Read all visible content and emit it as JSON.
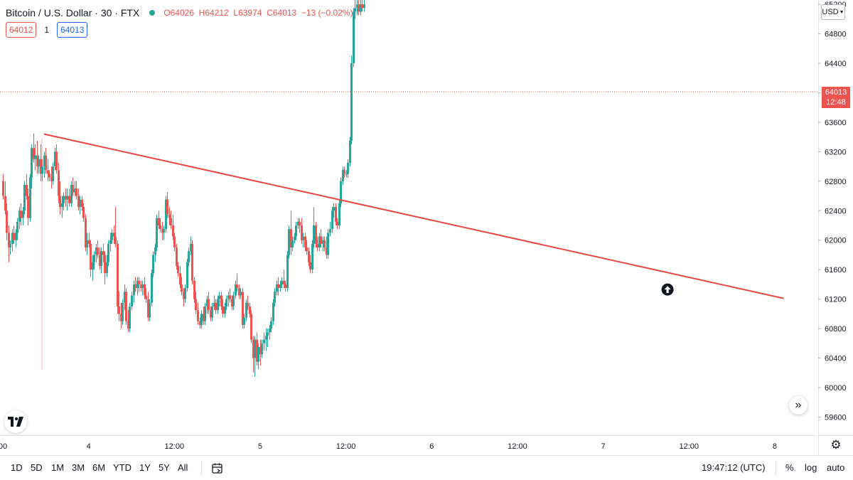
{
  "header": {
    "symbol": "Bitcoin / U.S. Dollar · 30 · FTX",
    "ohlc": {
      "open_label": "O",
      "open": "64026",
      "high_label": "H",
      "high": "64212",
      "low_label": "L",
      "low": "63974",
      "close_label": "C",
      "close": "64013",
      "change": "−13 (−0.02%)"
    },
    "sell_price": "64012",
    "spread": "1",
    "buy_price": "64013"
  },
  "price_scale": {
    "currency": "USD",
    "current_price": "64013",
    "countdown": "12:48"
  },
  "toolbar": {
    "ranges": [
      "1D",
      "5D",
      "1M",
      "3M",
      "6M",
      "YTD",
      "1Y",
      "5Y",
      "All"
    ],
    "clock": "19:47:12 (UTC)",
    "percent_label": "%",
    "log_label": "log",
    "auto_label": "auto"
  },
  "colors": {
    "up": "#26a69a",
    "down": "#ef5350",
    "trendline": "#e8483f",
    "grid": "#f0f3fa",
    "axis_text": "#131722"
  },
  "chart_data": {
    "type": "candlestick",
    "y_axis": {
      "ticks": [
        59600,
        60000,
        60400,
        60800,
        61200,
        61600,
        62000,
        62400,
        62800,
        63200,
        63600,
        64000,
        64400,
        64800,
        65200
      ],
      "ylim": [
        59400,
        65260
      ]
    },
    "x_axis": {
      "ticks": [
        {
          "label": "00",
          "bar": 0
        },
        {
          "label": "4",
          "bar": 48
        },
        {
          "label": "12:00",
          "bar": 96
        },
        {
          "label": "5",
          "bar": 144
        },
        {
          "label": "12:00",
          "bar": 192
        },
        {
          "label": "6",
          "bar": 240
        },
        {
          "label": "12:00",
          "bar": 288
        },
        {
          "label": "7",
          "bar": 336
        },
        {
          "label": "12:00",
          "bar": 384
        },
        {
          "label": "8",
          "bar": 432
        }
      ]
    },
    "current_price": 64013,
    "trendline": {
      "from": {
        "bar": 23,
        "price": 63440
      },
      "to": {
        "bar": 437,
        "price": 61210
      }
    },
    "annotation": {
      "type": "arrow-up",
      "bar": 372,
      "price": 61330
    },
    "candles_ohlc": [
      [
        62800,
        62900,
        62550,
        62600
      ],
      [
        62600,
        62800,
        62350,
        62400
      ],
      [
        62400,
        62500,
        62000,
        62100
      ],
      [
        62100,
        62200,
        61700,
        61900
      ],
      [
        61900,
        62000,
        61800,
        61950
      ],
      [
        61950,
        62150,
        61850,
        62100
      ],
      [
        62100,
        62200,
        61950,
        62000
      ],
      [
        62000,
        62150,
        61900,
        62100
      ],
      [
        62100,
        62300,
        62000,
        62250
      ],
      [
        62250,
        62450,
        62150,
        62400
      ],
      [
        62400,
        62500,
        62200,
        62300
      ],
      [
        62300,
        62450,
        62200,
        62400
      ],
      [
        62400,
        62800,
        62350,
        62750
      ],
      [
        62750,
        62900,
        62550,
        62600
      ],
      [
        62600,
        62700,
        62200,
        62300
      ],
      [
        62300,
        62900,
        62250,
        62850
      ],
      [
        62850,
        63300,
        62700,
        63250
      ],
      [
        63250,
        63450,
        63050,
        63100
      ],
      [
        63100,
        63300,
        62950,
        63150
      ],
      [
        63150,
        63350,
        62900,
        63000
      ],
      [
        63000,
        63150,
        62900,
        63100
      ],
      [
        63100,
        63300,
        62800,
        62900
      ],
      [
        62900,
        63100,
        62800,
        63000
      ],
      [
        63000,
        63200,
        62850,
        63150
      ],
      [
        63150,
        63250,
        62900,
        62950
      ],
      [
        62950,
        63100,
        62800,
        62900
      ],
      [
        62900,
        62950,
        62800,
        62850
      ],
      [
        62850,
        63000,
        62700,
        62800
      ],
      [
        62800,
        63050,
        62750,
        63000
      ],
      [
        63000,
        63250,
        62950,
        63200
      ],
      [
        63200,
        63300,
        62900,
        62950
      ],
      [
        62950,
        63050,
        62500,
        62600
      ],
      [
        62600,
        62800,
        62350,
        62450
      ],
      [
        62450,
        62600,
        62300,
        62500
      ],
      [
        62500,
        62650,
        62400,
        62600
      ],
      [
        62600,
        62700,
        62450,
        62550
      ],
      [
        62550,
        62700,
        62400,
        62600
      ],
      [
        62600,
        62700,
        62450,
        62500
      ],
      [
        62500,
        62800,
        62450,
        62750
      ],
      [
        62750,
        62850,
        62600,
        62650
      ],
      [
        62650,
        62800,
        62600,
        62700
      ],
      [
        62700,
        62800,
        62550,
        62600
      ],
      [
        62600,
        62700,
        62400,
        62450
      ],
      [
        62450,
        62600,
        62350,
        62550
      ],
      [
        62550,
        62600,
        62400,
        62450
      ],
      [
        62450,
        62500,
        62250,
        62300
      ],
      [
        62300,
        62350,
        61850,
        61900
      ],
      [
        61900,
        62100,
        61800,
        62000
      ],
      [
        62000,
        62100,
        61900,
        61950
      ],
      [
        61950,
        62000,
        61500,
        61600
      ],
      [
        61600,
        61800,
        61450,
        61700
      ],
      [
        61700,
        61850,
        61600,
        61800
      ],
      [
        61800,
        61950,
        61700,
        61900
      ],
      [
        61900,
        62000,
        61750,
        61800
      ],
      [
        61800,
        61900,
        61600,
        61650
      ],
      [
        61650,
        61900,
        61550,
        61850
      ],
      [
        61850,
        61950,
        61700,
        61800
      ],
      [
        61800,
        61850,
        61400,
        61550
      ],
      [
        61550,
        61800,
        61500,
        61700
      ],
      [
        61700,
        62000,
        61650,
        61950
      ],
      [
        61950,
        62100,
        61850,
        62000
      ],
      [
        62000,
        62150,
        61950,
        62100
      ],
      [
        62100,
        62200,
        61950,
        62050
      ],
      [
        62050,
        62450,
        61900,
        61950
      ],
      [
        61950,
        62000,
        61000,
        61100
      ],
      [
        61100,
        61300,
        60900,
        61000
      ],
      [
        61000,
        61150,
        60800,
        60900
      ],
      [
        60900,
        61200,
        60850,
        61150
      ],
      [
        61150,
        61400,
        61050,
        61300
      ],
      [
        61300,
        61350,
        60850,
        60900
      ],
      [
        60900,
        61050,
        60750,
        60800
      ],
      [
        60800,
        61150,
        60750,
        61100
      ],
      [
        61100,
        61300,
        61050,
        61250
      ],
      [
        61250,
        61450,
        61150,
        61400
      ],
      [
        61400,
        61500,
        61300,
        61350
      ],
      [
        61350,
        61500,
        61250,
        61450
      ],
      [
        61450,
        61500,
        61300,
        61400
      ],
      [
        61400,
        61450,
        61300,
        61350
      ],
      [
        61350,
        61450,
        61250,
        61400
      ],
      [
        61400,
        61500,
        61200,
        61250
      ],
      [
        61250,
        61350,
        61150,
        61200
      ],
      [
        61200,
        61300,
        60900,
        60950
      ],
      [
        60950,
        61200,
        60900,
        61150
      ],
      [
        61150,
        61600,
        61100,
        61550
      ],
      [
        61550,
        61850,
        61500,
        61800
      ],
      [
        61800,
        61950,
        61700,
        61900
      ],
      [
        61900,
        62350,
        61850,
        62300
      ],
      [
        62300,
        62400,
        62150,
        62200
      ],
      [
        62200,
        62300,
        62100,
        62150
      ],
      [
        62150,
        62250,
        62000,
        62100
      ],
      [
        62100,
        62200,
        62000,
        62150
      ],
      [
        62150,
        62600,
        62100,
        62550
      ],
      [
        62550,
        62650,
        62300,
        62350
      ],
      [
        62350,
        62450,
        62200,
        62300
      ],
      [
        62300,
        62400,
        62150,
        62200
      ],
      [
        62200,
        62350,
        62000,
        62050
      ],
      [
        62050,
        62100,
        61850,
        61900
      ],
      [
        61900,
        61950,
        61600,
        61650
      ],
      [
        61650,
        61700,
        61500,
        61550
      ],
      [
        61550,
        61650,
        61350,
        61400
      ],
      [
        61400,
        61500,
        61250,
        61300
      ],
      [
        61300,
        61350,
        61100,
        61200
      ],
      [
        61200,
        61400,
        61150,
        61350
      ],
      [
        61350,
        61750,
        61300,
        61700
      ],
      [
        61700,
        61900,
        61650,
        61850
      ],
      [
        61850,
        62050,
        61800,
        61950
      ],
      [
        61950,
        62000,
        61400,
        61450
      ],
      [
        61450,
        61500,
        61150,
        61200
      ],
      [
        61200,
        61300,
        61000,
        61050
      ],
      [
        61050,
        61150,
        60850,
        60900
      ],
      [
        60900,
        60950,
        60800,
        60850
      ],
      [
        60850,
        61050,
        60800,
        61000
      ],
      [
        61000,
        61100,
        60850,
        60900
      ],
      [
        60900,
        61150,
        60850,
        61100
      ],
      [
        61100,
        61250,
        61000,
        61200
      ],
      [
        61200,
        61300,
        61000,
        61050
      ],
      [
        61050,
        61100,
        60900,
        60950
      ],
      [
        60950,
        61150,
        60900,
        61100
      ],
      [
        61100,
        61250,
        61050,
        61150
      ],
      [
        61150,
        61200,
        61000,
        61050
      ],
      [
        61050,
        61250,
        61000,
        61200
      ],
      [
        61200,
        61300,
        61100,
        61250
      ],
      [
        61250,
        61300,
        61050,
        61100
      ],
      [
        61100,
        61200,
        60950,
        61000
      ],
      [
        61000,
        61150,
        60950,
        61100
      ],
      [
        61100,
        61250,
        61050,
        61200
      ],
      [
        61200,
        61300,
        61100,
        61250
      ],
      [
        61250,
        61350,
        61150,
        61200
      ],
      [
        61200,
        61250,
        61050,
        61100
      ],
      [
        61100,
        61300,
        61050,
        61250
      ],
      [
        61250,
        61450,
        61200,
        61400
      ],
      [
        61400,
        61550,
        61300,
        61350
      ],
      [
        61350,
        61400,
        61200,
        61250
      ],
      [
        61250,
        61350,
        61200,
        61300
      ],
      [
        61300,
        61350,
        60800,
        60850
      ],
      [
        60850,
        61000,
        60800,
        60950
      ],
      [
        60950,
        61200,
        60900,
        61150
      ],
      [
        61150,
        61250,
        61050,
        61100
      ],
      [
        61100,
        61150,
        60950,
        61000
      ],
      [
        61000,
        61050,
        60600,
        60650
      ],
      [
        60650,
        60700,
        60200,
        60400
      ],
      [
        60400,
        60700,
        60150,
        60650
      ],
      [
        60650,
        60750,
        60300,
        60350
      ],
      [
        60350,
        60600,
        60250,
        60550
      ],
      [
        60550,
        60650,
        60300,
        60450
      ],
      [
        60450,
        60650,
        60400,
        60600
      ],
      [
        60600,
        60750,
        60500,
        60650
      ],
      [
        60650,
        60800,
        60500,
        60700
      ],
      [
        60700,
        60800,
        60550,
        60750
      ],
      [
        60750,
        60850,
        60650,
        60800
      ],
      [
        60800,
        60950,
        60750,
        60900
      ],
      [
        60900,
        61200,
        60850,
        61150
      ],
      [
        61150,
        61350,
        61100,
        61300
      ],
      [
        61300,
        61450,
        61250,
        61400
      ],
      [
        61400,
        61500,
        61250,
        61350
      ],
      [
        61350,
        61450,
        61300,
        61400
      ],
      [
        61400,
        61500,
        61350,
        61450
      ],
      [
        61450,
        61600,
        61350,
        61400
      ],
      [
        61400,
        61450,
        61300,
        61350
      ],
      [
        61350,
        61850,
        61300,
        61800
      ],
      [
        61800,
        62200,
        61750,
        62150
      ],
      [
        62150,
        62400,
        61800,
        61900
      ],
      [
        61900,
        62050,
        61850,
        62000
      ],
      [
        62000,
        62100,
        61950,
        62050
      ],
      [
        62050,
        62250,
        62000,
        62200
      ],
      [
        62200,
        62300,
        62150,
        62250
      ],
      [
        62250,
        62300,
        62100,
        62200
      ],
      [
        62200,
        62300,
        61950,
        62000
      ],
      [
        62000,
        62100,
        61900,
        62050
      ],
      [
        62050,
        62100,
        61850,
        61900
      ],
      [
        61900,
        62000,
        61800,
        61850
      ],
      [
        61850,
        61900,
        61650,
        61700
      ],
      [
        61700,
        61800,
        61550,
        61600
      ],
      [
        61600,
        62000,
        61550,
        61950
      ],
      [
        61950,
        62450,
        61900,
        62200
      ],
      [
        62200,
        62250,
        61900,
        61950
      ],
      [
        61950,
        62050,
        61850,
        61900
      ],
      [
        61900,
        62100,
        61850,
        62050
      ],
      [
        62050,
        62150,
        61900,
        61950
      ],
      [
        61950,
        62050,
        61850,
        62000
      ],
      [
        62000,
        62050,
        61850,
        61900
      ],
      [
        61900,
        62050,
        61750,
        61800
      ],
      [
        61800,
        62150,
        61750,
        62100
      ],
      [
        62100,
        62250,
        62050,
        62150
      ],
      [
        62150,
        62450,
        62100,
        62400
      ],
      [
        62400,
        62500,
        62300,
        62450
      ],
      [
        62450,
        62500,
        62200,
        62250
      ],
      [
        62250,
        62300,
        62150,
        62200
      ],
      [
        62200,
        62550,
        62150,
        62500
      ],
      [
        62500,
        62850,
        62450,
        62800
      ],
      [
        62800,
        63000,
        62750,
        62950
      ],
      [
        62950,
        63000,
        62850,
        62900
      ],
      [
        62900,
        62950,
        62850,
        62900
      ],
      [
        62900,
        63100,
        62850,
        63050
      ],
      [
        63050,
        63400,
        63000,
        63350
      ],
      [
        63350,
        64500,
        63300,
        64400
      ],
      [
        64400,
        65150,
        64350,
        65100
      ],
      [
        65100,
        65260,
        65000,
        65150
      ],
      [
        65150,
        65260,
        65050,
        65200
      ],
      [
        65200,
        65260,
        65050,
        65100
      ],
      [
        65100,
        65260,
        65050,
        65200
      ],
      [
        65200,
        65260,
        65100,
        65150
      ],
      [
        65150,
        65260,
        65100,
        65200
      ]
    ]
  }
}
